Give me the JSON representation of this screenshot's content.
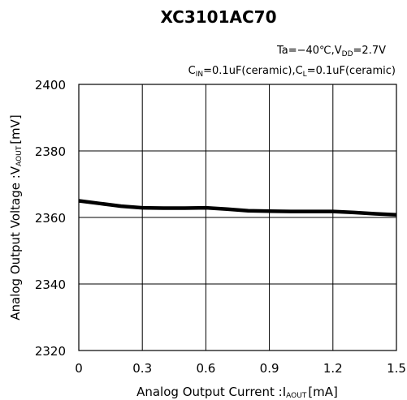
{
  "chart_data": {
    "type": "line",
    "title": "XC3101AC70",
    "conditions": {
      "line1": {
        "a": "Ta=−40℃,V",
        "a_sub": "DD",
        "b": "=2.7V"
      },
      "line2": {
        "a": "C",
        "a_sub": "IN",
        "b": "=0.1uF(ceramic),C",
        "b_sub": "L",
        "c": "=0.1uF(ceramic)"
      }
    },
    "xlabel": {
      "main": "Analog Output Current :I",
      "sub": "AOUT",
      "unit": "[mA]"
    },
    "ylabel": {
      "main": "Analog Output Voltage :V",
      "sub": "AOUT",
      "unit": "[mV]"
    },
    "xlim": [
      0,
      1.5
    ],
    "ylim": [
      2320,
      2400
    ],
    "xticks": [
      "0",
      "0.3",
      "0.6",
      "0.9",
      "1.2",
      "1.5"
    ],
    "yticks": [
      "2320",
      "2340",
      "2360",
      "2380",
      "2400"
    ],
    "grid": true,
    "series": [
      {
        "x": [
          0,
          0.1,
          0.2,
          0.3,
          0.4,
          0.5,
          0.6,
          0.7,
          0.8,
          0.9,
          1.0,
          1.1,
          1.2,
          1.3,
          1.4,
          1.5
        ],
        "values": [
          2365.0,
          2364.2,
          2363.4,
          2362.9,
          2362.8,
          2362.8,
          2362.9,
          2362.5,
          2362.0,
          2361.9,
          2361.8,
          2361.8,
          2361.8,
          2361.5,
          2361.1,
          2360.8
        ],
        "color": "#000000"
      }
    ]
  }
}
